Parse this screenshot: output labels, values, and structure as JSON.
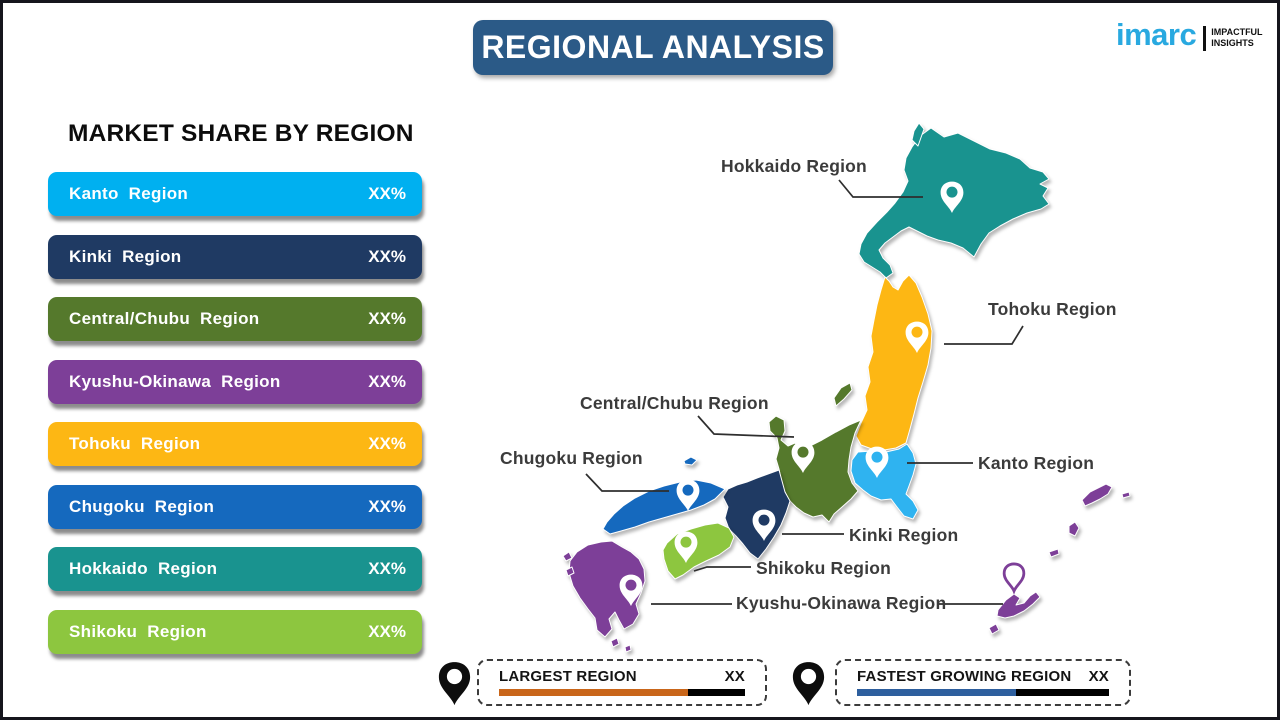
{
  "page": {
    "title": "REGIONAL ANALYSIS",
    "title_bg": "#2b5a87"
  },
  "logo": {
    "brand": "imarc",
    "brand_color": "#29a9e0",
    "tagline": [
      "IMPACTFUL",
      "INSIGHTS"
    ]
  },
  "market_share": {
    "heading": "MARKET SHARE BY REGION",
    "items": [
      {
        "label": "Kanto Region",
        "value": "XX%",
        "color": "#00b0f0"
      },
      {
        "label": "Kinki Region",
        "value": "XX%",
        "color": "#1f3a63"
      },
      {
        "label": "Central/Chubu Region",
        "value": "XX%",
        "color": "#55792c"
      },
      {
        "label": "Kyushu-Okinawa Region",
        "value": "XX%",
        "color": "#7d3f98"
      },
      {
        "label": "Tohoku Region",
        "value": "XX%",
        "color": "#fdb714"
      },
      {
        "label": "Chugoku Region",
        "value": "XX%",
        "color": "#1569be"
      },
      {
        "label": "Hokkaido Region",
        "value": "XX%",
        "color": "#19938f"
      },
      {
        "label": "Shikoku Region",
        "value": "XX%",
        "color": "#8dc63f"
      }
    ]
  },
  "map": {
    "labels": {
      "hokkaido": "Hokkaido Region",
      "tohoku": "Tohoku Region",
      "central_chubu": "Central/Chubu Region",
      "chugoku": "Chugoku Region",
      "kanto": "Kanto Region",
      "kinki": "Kinki Region",
      "shikoku": "Shikoku Region",
      "kyushu_okinawa": "Kyushu-Okinawa Region"
    },
    "region_colors": {
      "hokkaido": "#19938f",
      "tohoku": "#fdb714",
      "kanto": "#2fb3f0",
      "chubu": "#55792c",
      "kinki": "#1f3a63",
      "chugoku": "#1569be",
      "shikoku": "#8dc63f",
      "kyushu_okinawa": "#7d3f98"
    }
  },
  "legend": [
    {
      "label": "LARGEST REGION",
      "value": "XX",
      "bar_color": "#c9661a",
      "bar_base_color": "#000000",
      "fill_percent": 77
    },
    {
      "label": "FASTEST GROWING REGION",
      "value": "XX",
      "bar_color": "#2e5f9e",
      "bar_base_color": "#000000",
      "fill_percent": 63
    }
  ]
}
